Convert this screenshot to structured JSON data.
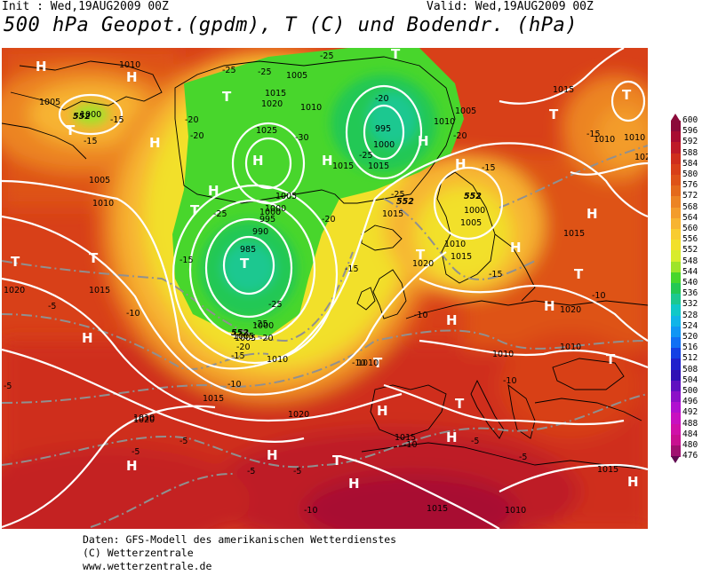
{
  "header": {
    "init": "Init : Wed,19AUG2009  00Z",
    "valid": "Valid: Wed,19AUG2009  00Z",
    "title": "500 hPa Geopot.(gpdm), T (C) und Bodendr. (hPa)"
  },
  "legend": {
    "levels": [
      "600",
      "596",
      "592",
      "588",
      "584",
      "580",
      "576",
      "572",
      "568",
      "564",
      "560",
      "556",
      "552",
      "548",
      "544",
      "540",
      "536",
      "532",
      "528",
      "524",
      "520",
      "516",
      "512",
      "508",
      "504",
      "500",
      "496",
      "492",
      "488",
      "484",
      "480",
      "476"
    ],
    "colors": [
      "#8b0a3a",
      "#a80c32",
      "#be1a28",
      "#cf2e1c",
      "#d84018",
      "#de5318",
      "#e46a1c",
      "#ec8424",
      "#f39c2c",
      "#f7b432",
      "#f8cc30",
      "#f2e02a",
      "#d8ec2c",
      "#9ee42a",
      "#48d62c",
      "#24c854",
      "#1cc890",
      "#10c8c8",
      "#10b4e8",
      "#1096f4",
      "#1070f4",
      "#1440e4",
      "#2020cc",
      "#3010b4",
      "#6010c0",
      "#8c10c8",
      "#b010d0",
      "#c810c0",
      "#d010a8",
      "#c81090",
      "#a01070",
      "#600a50"
    ]
  },
  "map_labels": {
    "high_symbol": "H",
    "low_symbol": "T",
    "pressure": [
      "1005",
      "1010",
      "1000",
      "1005",
      "1015",
      "1020",
      "1025",
      "995",
      "1000",
      "1005",
      "1015",
      "1010",
      "1005",
      "1000",
      "995",
      "990",
      "985",
      "1000",
      "1005",
      "1010",
      "1015",
      "1020",
      "1010",
      "1015",
      "1020",
      "1010",
      "1015",
      "1015",
      "1005",
      "1010",
      "1010",
      "1000",
      "1005",
      "1015",
      "1020",
      "1010",
      "1015",
      "1020",
      "1010",
      "1015",
      "1020",
      "1010",
      "1010",
      "1015",
      "1010",
      "1015",
      "1020",
      "1005",
      "1000",
      "1010",
      "1015"
    ],
    "temperature": [
      "-15",
      "-15",
      "-20",
      "-25",
      "-25",
      "-25",
      "-20",
      "-20",
      "-30",
      "-25",
      "-20",
      "-25",
      "-25",
      "-20",
      "-15",
      "-15",
      "-15",
      "-20",
      "-25",
      "-25",
      "-20",
      "-15",
      "-10",
      "-15",
      "-10",
      "-10",
      "-10",
      "-10",
      "-10",
      "-5",
      "-5",
      "-5",
      "-5",
      "-5",
      "-5",
      "-5",
      "-10",
      "-10",
      "-5",
      "-15"
    ],
    "geopot": [
      "552",
      "552",
      "552",
      "552"
    ]
  },
  "footer": {
    "line1": "Daten: GFS-Modell des amerikanischen Wetterdienstes",
    "line2": "(C) Wetterzentrale",
    "line3": "www.wetterzentrale.de"
  }
}
